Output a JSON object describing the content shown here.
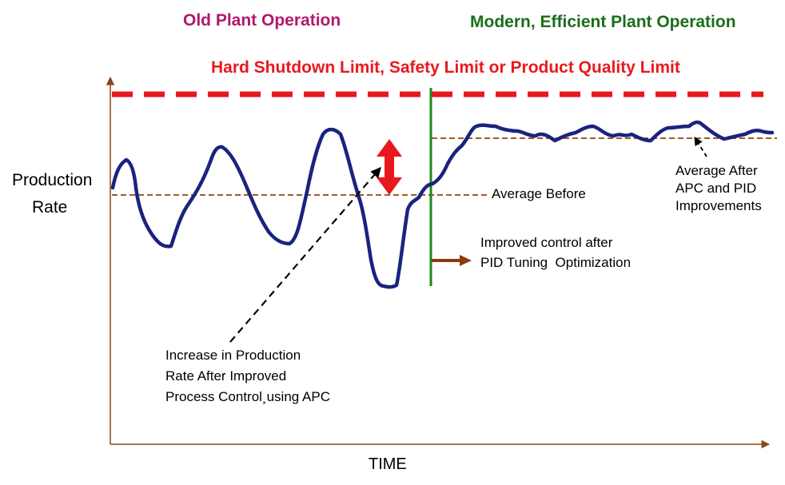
{
  "labels": {
    "old_operation": "Old Plant Operation",
    "modern_operation": "Modern, Efficient Plant Operation",
    "limit": "Hard Shutdown Limit, Safety Limit or Product Quality Limit",
    "y_axis_line1": "Production",
    "y_axis_line2": "Rate",
    "x_axis": "TIME",
    "average_before": "Average Before",
    "average_after_line1": "Average After",
    "average_after_line2": "APC and PID",
    "average_after_line3": "Improvements",
    "improved_line1": "Improved control after",
    "improved_line2": "PID Tuning  Optimization",
    "increase_line1": "Increase in Production",
    "increase_line2": "Rate After Improved",
    "increase_line3": "Process Control¸using APC"
  },
  "colors": {
    "old_operation": "#b0186e",
    "modern_operation": "#1a6e1a",
    "limit": "#e8191c",
    "signal": "#1a237e",
    "average_lines": "#8b4513",
    "divider": "#1a8a1a",
    "axes": "#8b4513",
    "red_arrow": "#e8191c",
    "brown_arrow": "#8b3a10",
    "text": "#000000"
  }
}
